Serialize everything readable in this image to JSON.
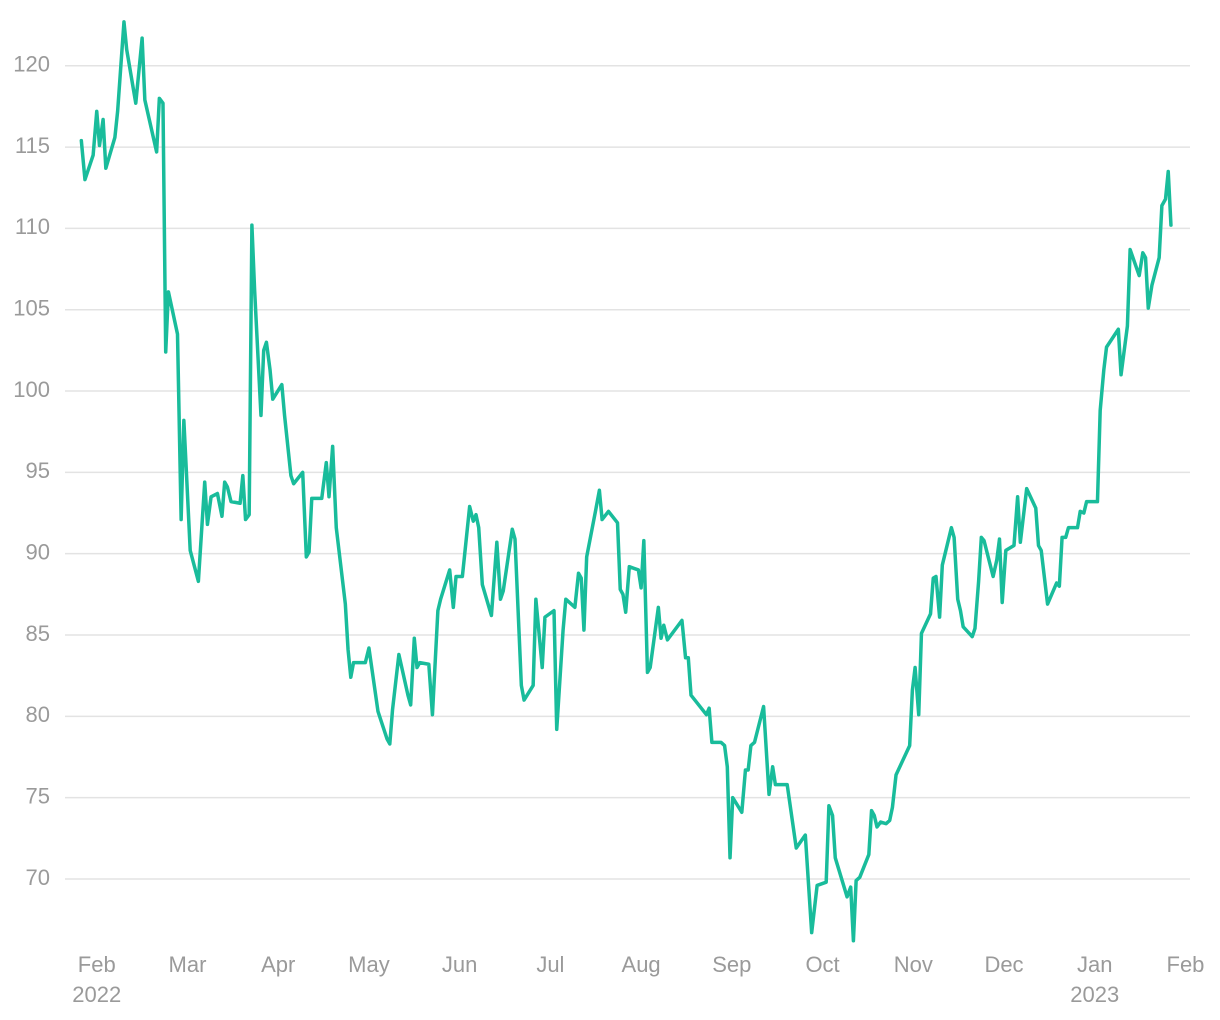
{
  "chart_data": {
    "type": "line",
    "color": "#19bc9b",
    "grid": true,
    "xlim": [
      -0.35,
      12.05
    ],
    "ylim": [
      66,
      123
    ],
    "yticks": [
      70,
      75,
      80,
      85,
      90,
      95,
      100,
      105,
      110,
      115,
      120
    ],
    "xticks": [
      {
        "value": 0,
        "label": "Feb"
      },
      {
        "value": 1,
        "label": "Mar"
      },
      {
        "value": 2,
        "label": "Apr"
      },
      {
        "value": 3,
        "label": "May"
      },
      {
        "value": 4,
        "label": "Jun"
      },
      {
        "value": 5,
        "label": "Jul"
      },
      {
        "value": 6,
        "label": "Aug"
      },
      {
        "value": 7,
        "label": "Sep"
      },
      {
        "value": 8,
        "label": "Oct"
      },
      {
        "value": 9,
        "label": "Nov"
      },
      {
        "value": 10,
        "label": "Dec"
      },
      {
        "value": 11,
        "label": "Jan"
      },
      {
        "value": 12,
        "label": "Feb"
      }
    ],
    "year_labels": [
      {
        "value": 0,
        "label": "2022"
      },
      {
        "value": 11,
        "label": "2023"
      }
    ],
    "x": [
      -0.17,
      -0.13,
      -0.04,
      0,
      0.03,
      0.07,
      0.1,
      0.2,
      0.23,
      0.3,
      0.33,
      0.43,
      0.5,
      0.53,
      0.66,
      0.69,
      0.73,
      0.76,
      0.79,
      0.89,
      0.93,
      0.96,
      0.99,
      1.03,
      1.12,
      1.19,
      1.22,
      1.26,
      1.33,
      1.38,
      1.41,
      1.44,
      1.48,
      1.58,
      1.61,
      1.64,
      1.68,
      1.71,
      1.74,
      1.81,
      1.84,
      1.87,
      1.91,
      1.94,
      2.04,
      2.07,
      2.14,
      2.17,
      2.27,
      2.31,
      2.34,
      2.37,
      2.48,
      2.53,
      2.56,
      2.6,
      2.64,
      2.74,
      2.77,
      2.8,
      2.83,
      2.96,
      3.0,
      3.1,
      3.2,
      3.23,
      3.26,
      3.33,
      3.43,
      3.46,
      3.5,
      3.53,
      3.56,
      3.66,
      3.7,
      3.76,
      3.79,
      3.89,
      3.93,
      3.96,
      4.03,
      4.11,
      4.15,
      4.18,
      4.21,
      4.25,
      4.35,
      4.41,
      4.45,
      4.48,
      4.58,
      4.61,
      4.68,
      4.71,
      4.81,
      4.84,
      4.91,
      4.94,
      5.04,
      5.07,
      5.14,
      5.17,
      5.27,
      5.31,
      5.34,
      5.37,
      5.4,
      5.5,
      5.54,
      5.57,
      5.64,
      5.74,
      5.77,
      5.8,
      5.83,
      5.87,
      5.97,
      6.0,
      6.03,
      6.07,
      6.1,
      6.19,
      6.22,
      6.25,
      6.29,
      6.45,
      6.49,
      6.52,
      6.55,
      6.72,
      6.75,
      6.78,
      6.88,
      6.92,
      6.95,
      6.98,
      7.01,
      7.11,
      7.15,
      7.18,
      7.21,
      7.25,
      7.35,
      7.41,
      7.45,
      7.48,
      7.61,
      7.71,
      7.81,
      7.88,
      7.94,
      8.04,
      8.07,
      8.11,
      8.14,
      8.27,
      8.31,
      8.34,
      8.37,
      8.41,
      8.51,
      8.54,
      8.57,
      8.6,
      8.64,
      8.7,
      8.74,
      8.77,
      8.81,
      8.86,
      8.96,
      8.99,
      9.02,
      9.06,
      9.09,
      9.19,
      9.22,
      9.25,
      9.29,
      9.32,
      9.42,
      9.45,
      9.49,
      9.52,
      9.55,
      9.65,
      9.68,
      9.72,
      9.75,
      9.78,
      9.88,
      9.92,
      9.95,
      9.98,
      10.02,
      10.11,
      10.15,
      10.18,
      10.25,
      10.35,
      10.38,
      10.41,
      10.48,
      10.58,
      10.61,
      10.64,
      10.68,
      10.71,
      10.81,
      10.84,
      10.88,
      10.91,
      11.03,
      11.06,
      11.1,
      11.13,
      11.26,
      11.29,
      11.36,
      11.39,
      11.49,
      11.53,
      11.56,
      11.59,
      11.63,
      11.71,
      11.74,
      11.78,
      11.81,
      11.84
    ],
    "values": [
      115.4,
      113.0,
      114.5,
      117.2,
      115.1,
      116.7,
      113.7,
      115.6,
      117.2,
      122.7,
      121.0,
      117.7,
      121.7,
      117.9,
      114.7,
      118.0,
      117.7,
      102.4,
      106.1,
      103.5,
      92.1,
      98.2,
      94.8,
      90.2,
      88.3,
      94.4,
      91.8,
      93.5,
      93.7,
      92.3,
      94.4,
      94.1,
      93.2,
      93.1,
      94.8,
      92.1,
      92.4,
      110.2,
      106.2,
      98.5,
      102.5,
      103.0,
      101.3,
      99.5,
      100.4,
      98.5,
      94.8,
      94.3,
      95.0,
      89.8,
      90.1,
      93.4,
      93.4,
      95.6,
      93.5,
      96.6,
      91.6,
      86.9,
      84.1,
      82.4,
      83.3,
      83.3,
      84.2,
      80.3,
      78.6,
      78.3,
      80.4,
      83.8,
      81.3,
      80.7,
      84.8,
      83.0,
      83.3,
      83.2,
      80.1,
      86.5,
      87.2,
      89.0,
      86.7,
      88.6,
      88.6,
      92.9,
      92.0,
      92.4,
      91.6,
      88.1,
      86.2,
      90.7,
      87.2,
      87.7,
      91.5,
      90.9,
      81.9,
      81.0,
      81.9,
      87.2,
      83.0,
      86.1,
      86.5,
      79.2,
      85.3,
      87.2,
      86.7,
      88.8,
      88.5,
      85.3,
      89.8,
      92.7,
      93.9,
      92.1,
      92.6,
      91.9,
      87.8,
      87.5,
      86.4,
      89.2,
      89.0,
      87.9,
      90.8,
      82.7,
      83.0,
      86.7,
      84.8,
      85.6,
      84.7,
      85.9,
      83.6,
      83.6,
      81.3,
      80.1,
      80.5,
      78.4,
      78.4,
      78.2,
      76.9,
      71.3,
      75.0,
      74.1,
      76.7,
      76.7,
      78.2,
      78.4,
      80.6,
      75.2,
      76.9,
      75.8,
      75.8,
      71.9,
      72.7,
      66.7,
      69.6,
      69.8,
      74.5,
      73.9,
      71.3,
      68.9,
      69.5,
      66.2,
      69.9,
      70.1,
      71.5,
      74.2,
      73.9,
      73.2,
      73.5,
      73.4,
      73.6,
      74.4,
      76.4,
      77.0,
      78.2,
      81.6,
      83.0,
      80.1,
      85.1,
      86.3,
      88.5,
      88.6,
      86.1,
      89.3,
      91.6,
      91.0,
      87.2,
      86.5,
      85.5,
      84.9,
      85.4,
      88.3,
      91.0,
      90.8,
      88.6,
      89.6,
      90.9,
      87.0,
      90.2,
      90.5,
      93.5,
      90.7,
      94.0,
      92.8,
      90.5,
      90.2,
      86.9,
      88.2,
      88.0,
      91.0,
      91.0,
      91.6,
      91.6,
      92.6,
      92.5,
      93.2,
      93.2,
      98.8,
      101.3,
      102.7,
      103.8,
      101.0,
      104.0,
      108.7,
      107.1,
      108.5,
      108.2,
      105.1,
      106.5,
      108.2,
      111.4,
      111.8,
      113.5,
      110.2
    ]
  }
}
